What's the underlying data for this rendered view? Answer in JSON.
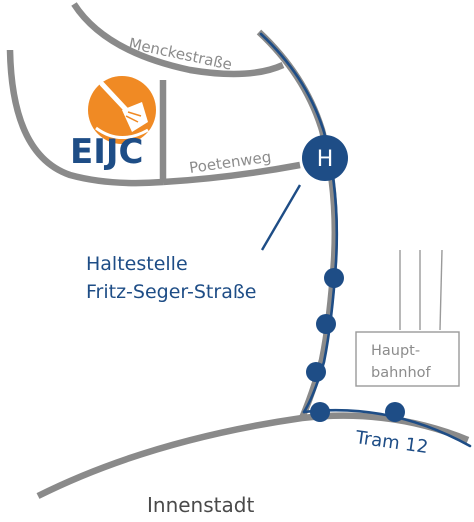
{
  "map": {
    "streets": {
      "menckestrasse": "Menckestraße",
      "poetenweg": "Poetenweg"
    },
    "logo": {
      "text": "EIJC",
      "color_orange": "#f08a24",
      "color_blue": "#1e4d86"
    },
    "stop": {
      "symbol": "H",
      "label_line1": "Haltestelle",
      "label_line2": "Fritz-Seger-Straße"
    },
    "hauptbahnhof": {
      "line1": "Haupt-",
      "line2": "bahnhof"
    },
    "tram": {
      "label": "Tram 12"
    },
    "district": {
      "label": "Innenstadt"
    },
    "colors": {
      "road": "#8a8a8a",
      "tram_line": "#1e4d86",
      "station_outline": "#9a9a9a"
    }
  }
}
